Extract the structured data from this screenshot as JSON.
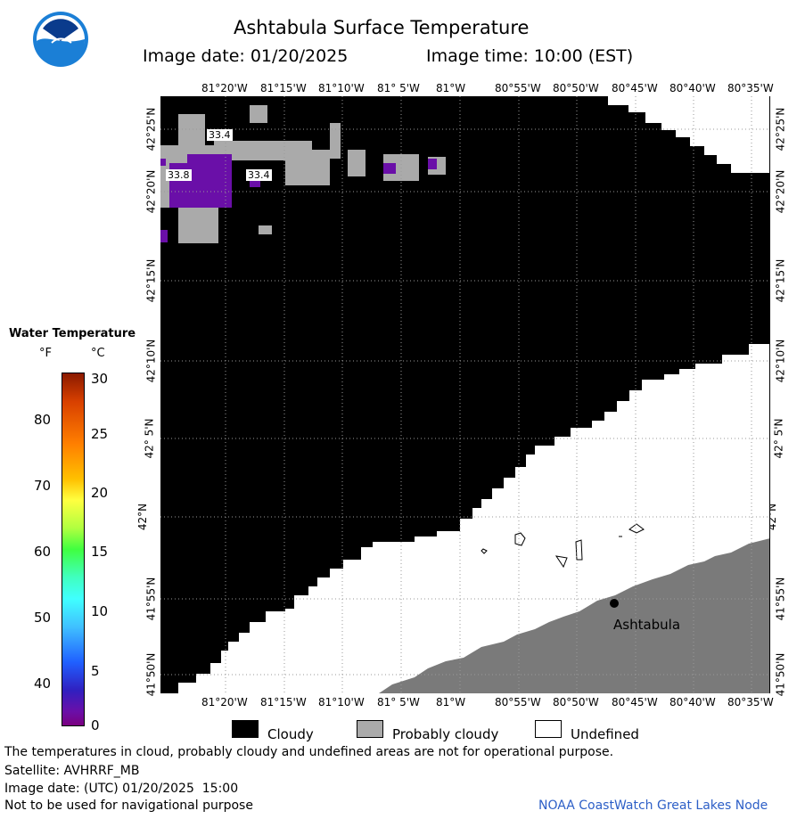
{
  "header": {
    "title": "Ashtabula Surface Temperature",
    "image_date_label": "Image date: 01/20/2025",
    "image_time_label": "Image time: 10:00 (EST)"
  },
  "map": {
    "top_lon_ticks": [
      "81°20'W",
      "81°15'W",
      "81°10'W",
      "81° 5'W",
      "81°W",
      "80°55'W",
      "80°50'W",
      "80°45'W",
      "80°40'W",
      "80°35'W"
    ],
    "bottom_lon_ticks": [
      "81°20'W",
      "81°15'W",
      "81°10'W",
      "81° 5'W",
      "81°W",
      "80°55'W",
      "80°50'W",
      "80°45'W",
      "80°40'W",
      "80°35'W"
    ],
    "lat_ticks": [
      "42°25'N",
      "42°20'N",
      "42°15'N",
      "42°10'N",
      "42° 5'N",
      "42°N",
      "41°55'N",
      "41°50'N"
    ],
    "city_label": "Ashtabula",
    "temp_labels": [
      "33.4",
      "33.8",
      "33.4"
    ]
  },
  "colorbar": {
    "title": "Water Temperature",
    "unit_f": "°F",
    "unit_c": "°C",
    "f_ticks": [
      "80",
      "70",
      "60",
      "50",
      "40"
    ],
    "c_ticks": [
      "30",
      "25",
      "20",
      "15",
      "10",
      "5",
      "0"
    ]
  },
  "legend": {
    "cloudy": "Cloudy",
    "probably_cloudy": "Probably cloudy",
    "undefined": "Undefined",
    "cloudy_color": "#000000",
    "probably_cloudy_color": "#aaaaaa",
    "undefined_color": "#ffffff"
  },
  "footer": {
    "note": "The temperatures in cloud, probably cloudy and undefined areas are not for operational purpose.",
    "satellite": "Satellite: AVHRRF_MB",
    "utc_date": "Image date: (UTC) 01/20/2025  15:00",
    "nav_warning": "Not to be used for navigational purpose",
    "credit": "NOAA CoastWatch Great Lakes Node"
  },
  "colors": {
    "land": "#7a7a7a",
    "cloud": "#000000",
    "prob_cloud": "#aaaaaa",
    "cold_water": "#6a0fa8",
    "credit": "#2d5fc7"
  }
}
